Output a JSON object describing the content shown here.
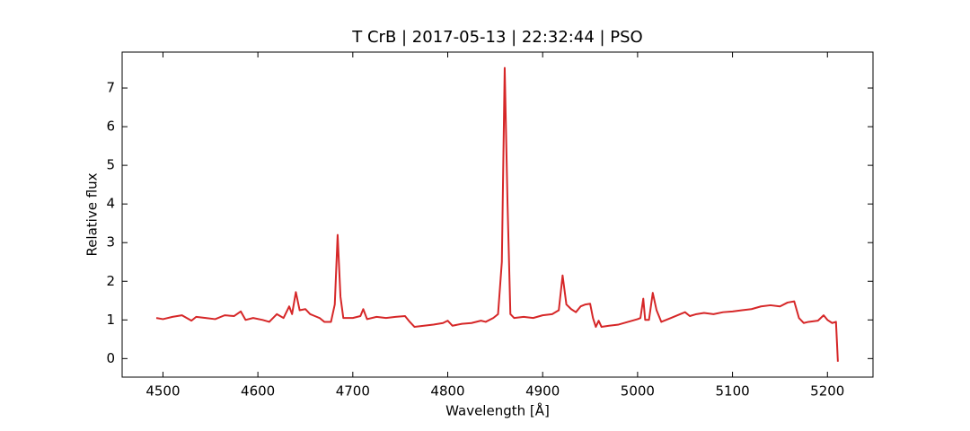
{
  "chart_data": {
    "type": "line",
    "title": "T CrB | 2017-05-13 | 22:32:44 | PSO",
    "x_label": "Wavelength [Å]",
    "y_label": "Relative flux",
    "x": [
      4493,
      4500,
      4510,
      4520,
      4525,
      4530,
      4535,
      4545,
      4555,
      4565,
      4575,
      4582,
      4587,
      4595,
      4605,
      4612,
      4620,
      4627,
      4633,
      4636,
      4640,
      4644,
      4650,
      4655,
      4660,
      4665,
      4670,
      4677,
      4681,
      4684,
      4687,
      4690,
      4700,
      4708,
      4711,
      4715,
      4725,
      4735,
      4745,
      4755,
      4760,
      4765,
      4775,
      4785,
      4795,
      4800,
      4805,
      4815,
      4825,
      4835,
      4840,
      4848,
      4853,
      4857,
      4860,
      4863,
      4866,
      4870,
      4880,
      4890,
      4900,
      4910,
      4917,
      4921,
      4925,
      4930,
      4935,
      4940,
      4945,
      4950,
      4953,
      4956,
      4959,
      4962,
      4970,
      4980,
      4990,
      5000,
      5003,
      5006,
      5008,
      5012,
      5016,
      5020,
      5025,
      5035,
      5045,
      5050,
      5055,
      5062,
      5070,
      5080,
      5090,
      5100,
      5110,
      5120,
      5130,
      5140,
      5150,
      5158,
      5165,
      5170,
      5175,
      5180,
      5190,
      5196,
      5200,
      5205,
      5209,
      5211
    ],
    "series": [
      {
        "name": "T CrB",
        "color": "#d62728",
        "values": [
          1.05,
          1.02,
          1.08,
          1.12,
          1.05,
          0.98,
          1.08,
          1.05,
          1.02,
          1.12,
          1.1,
          1.22,
          1.0,
          1.05,
          1.0,
          0.95,
          1.15,
          1.05,
          1.35,
          1.15,
          1.72,
          1.25,
          1.28,
          1.15,
          1.1,
          1.05,
          0.95,
          0.95,
          1.4,
          3.2,
          1.6,
          1.05,
          1.05,
          1.1,
          1.28,
          1.02,
          1.08,
          1.05,
          1.08,
          1.1,
          0.95,
          0.82,
          0.85,
          0.88,
          0.92,
          0.98,
          0.85,
          0.9,
          0.92,
          0.98,
          0.95,
          1.05,
          1.15,
          2.5,
          7.52,
          4.0,
          1.15,
          1.05,
          1.08,
          1.05,
          1.12,
          1.15,
          1.25,
          2.15,
          1.4,
          1.28,
          1.2,
          1.35,
          1.4,
          1.42,
          1.05,
          0.82,
          0.98,
          0.82,
          0.85,
          0.88,
          0.95,
          1.02,
          1.05,
          1.55,
          1.0,
          1.0,
          1.7,
          1.25,
          0.95,
          1.05,
          1.15,
          1.2,
          1.1,
          1.15,
          1.18,
          1.15,
          1.2,
          1.22,
          1.25,
          1.28,
          1.35,
          1.38,
          1.35,
          1.45,
          1.48,
          1.05,
          0.92,
          0.95,
          0.98,
          1.12,
          1.0,
          0.92,
          0.95,
          -0.08
        ]
      }
    ],
    "xlim": [
      4457,
      5248
    ],
    "ylim": [
      -0.48,
      7.93
    ],
    "xticks": [
      4500,
      4600,
      4700,
      4800,
      4900,
      5000,
      5100,
      5200
    ],
    "yticks": [
      0,
      1,
      2,
      3,
      4,
      5,
      6,
      7
    ]
  }
}
